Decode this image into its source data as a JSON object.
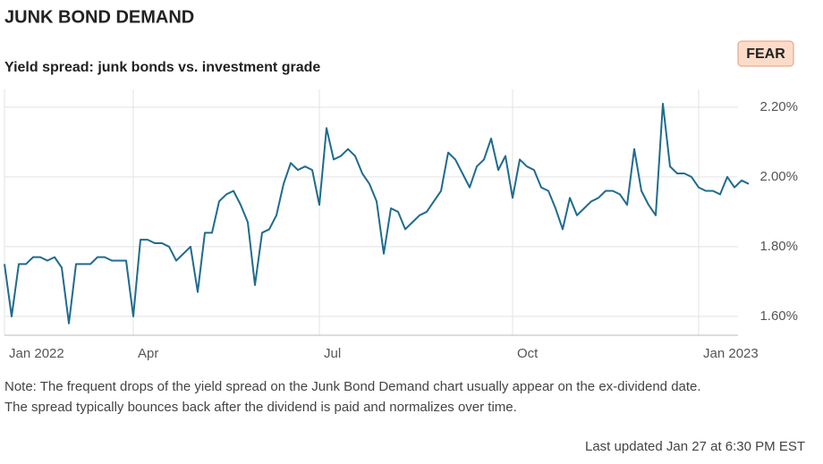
{
  "chart_data": {
    "type": "line",
    "title": "JUNK BOND DEMAND",
    "subtitle": "Yield spread: junk bonds vs. investment grade",
    "badge": "FEAR",
    "note": [
      "Note: The frequent drops of the yield spread on the Junk Bond Demand chart usually appear on the ex-dividend date.",
      "The spread typically bounces back after the dividend is paid and normalizes over time."
    ],
    "footer": "Last updated Jan 27 at 6:30 PM EST",
    "categories": [
      "Jan 2022",
      null,
      null,
      null,
      null,
      null,
      null,
      null,
      null,
      null,
      null,
      null,
      null,
      null,
      null,
      null,
      null,
      null,
      "Apr",
      null,
      null,
      null,
      null,
      null,
      null,
      null,
      null,
      null,
      null,
      null,
      null,
      null,
      null,
      null,
      null,
      null,
      null,
      null,
      null,
      null,
      null,
      null,
      null,
      null,
      "Jul",
      null,
      null,
      null,
      null,
      null,
      null,
      null,
      null,
      null,
      null,
      null,
      null,
      null,
      null,
      null,
      null,
      null,
      null,
      null,
      null,
      null,
      null,
      null,
      null,
      null,
      null,
      "Oct",
      null,
      null,
      null,
      null,
      null,
      null,
      null,
      null,
      null,
      null,
      null,
      null,
      null,
      null,
      null,
      null,
      null,
      null,
      null,
      null,
      null,
      null,
      null,
      null,
      null,
      "Jan 2023",
      null,
      null,
      null,
      null,
      null,
      null,
      null
    ],
    "series": [
      {
        "name": "Yield spread",
        "color": "#1f6b8f",
        "values": [
          1.75,
          1.6,
          1.75,
          1.75,
          1.77,
          1.77,
          1.76,
          1.77,
          1.74,
          1.58,
          1.75,
          1.75,
          1.75,
          1.77,
          1.77,
          1.76,
          1.76,
          1.76,
          1.6,
          1.82,
          1.82,
          1.81,
          1.81,
          1.8,
          1.76,
          1.78,
          1.8,
          1.67,
          1.84,
          1.84,
          1.93,
          1.95,
          1.96,
          1.92,
          1.87,
          1.69,
          1.84,
          1.85,
          1.89,
          1.98,
          2.04,
          2.02,
          2.03,
          2.02,
          1.92,
          2.14,
          2.05,
          2.06,
          2.08,
          2.06,
          2.01,
          1.98,
          1.93,
          1.78,
          1.91,
          1.9,
          1.85,
          1.87,
          1.89,
          1.9,
          1.93,
          1.96,
          2.07,
          2.05,
          2.01,
          1.97,
          2.03,
          2.05,
          2.11,
          2.02,
          2.06,
          1.94,
          2.05,
          2.03,
          2.02,
          1.97,
          1.96,
          1.91,
          1.85,
          1.94,
          1.89,
          1.91,
          1.93,
          1.94,
          1.96,
          1.96,
          1.95,
          1.92,
          2.08,
          1.96,
          1.92,
          1.89,
          2.21,
          2.03,
          2.01,
          2.01,
          2.0,
          1.97,
          1.96,
          1.96,
          1.95,
          2.0,
          1.97,
          1.99,
          1.98
        ]
      }
    ],
    "ylim": [
      1.546,
      2.251
    ],
    "yticks": [
      {
        "value": 1.6,
        "label": "1.60%"
      },
      {
        "value": 1.8,
        "label": "1.80%"
      },
      {
        "value": 2.0,
        "label": "2.00%"
      },
      {
        "value": 2.2,
        "label": "2.20%"
      }
    ],
    "grid": true
  }
}
